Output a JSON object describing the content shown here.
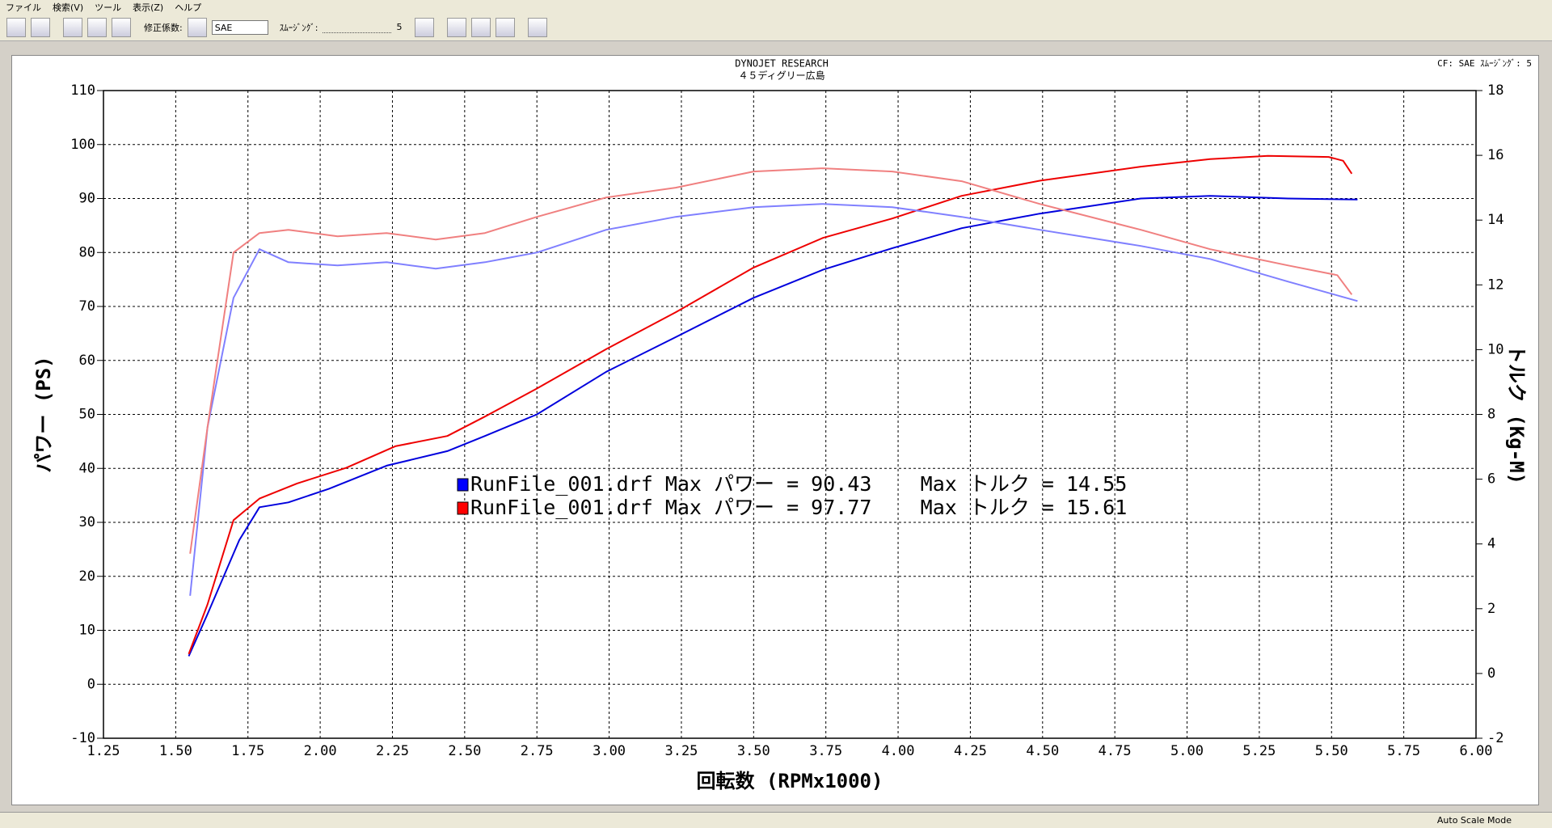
{
  "menu": [
    "ファイル",
    "検索(V)",
    "ツール",
    "表示(Z)",
    "ヘルプ"
  ],
  "toolbar": {
    "correction_label": "修正係数:",
    "correction_value": "SAE",
    "smoothing_label": "ｽﾑｰｼﾞﾝｸﾞ:",
    "smoothing_value": "5"
  },
  "status": "Auto Scale Mode",
  "chart_data": {
    "type": "line",
    "title": "DYNOJET  RESEARCH",
    "subtitle": "４５ディグリー広島",
    "corner_note": "CF: SAE  ｽﾑｰｼﾞﾝｸﾞ: 5",
    "x_label": "回転数 (RPMx1000)",
    "y_label": "パワー (PS)",
    "y2_label": "トルク (Kg-M)",
    "xlim": [
      1.25,
      6.0
    ],
    "xticks": [
      1.25,
      {
        "value": 1.5,
        "label": "1.50"
      },
      1.75,
      {
        "value": 2.0,
        "label": "2.00"
      },
      2.25,
      {
        "value": 2.5,
        "label": "2.50"
      },
      2.75,
      {
        "value": 3.0,
        "label": "3.00"
      },
      3.25,
      {
        "value": 3.5,
        "label": "3.50"
      },
      3.75,
      {
        "value": 4.0,
        "label": "4.00"
      },
      4.25,
      {
        "value": 4.5,
        "label": "4.50"
      },
      4.75,
      {
        "value": 5.0,
        "label": "5.00"
      },
      5.25,
      {
        "value": 5.5,
        "label": "5.50"
      },
      5.75,
      {
        "value": 6.0,
        "label": "6.00"
      }
    ],
    "ylim": [
      -10,
      110
    ],
    "yticks": [
      -10,
      0,
      10,
      20,
      30,
      40,
      50,
      60,
      70,
      80,
      90,
      100,
      110
    ],
    "y2lim": [
      -2,
      18
    ],
    "y2ticks": [
      -2,
      0,
      2,
      4,
      6,
      8,
      10,
      12,
      14,
      16,
      18
    ],
    "grid": true,
    "legend": [
      {
        "text": "RunFile_001.drf Max パワー = 90.43    Max トルク = 14.55",
        "color": "#0000ff"
      },
      {
        "text": "RunFile_001.drf Max パワー = 97.77    Max トルク = 15.61",
        "color": "#ff0000"
      }
    ],
    "series": [
      {
        "color": "#0000dd",
        "axis": "y",
        "x": [
          1.545,
          1.61,
          1.72,
          1.79,
          1.89,
          2.03,
          2.23,
          2.44,
          2.57,
          2.75,
          2.99,
          3.23,
          3.5,
          3.74,
          3.98,
          4.22,
          4.49,
          4.84,
          5.08,
          5.35,
          5.59
        ],
        "values": [
          5.2,
          13,
          26.7,
          32.8,
          33.7,
          36.2,
          40.5,
          43.2,
          46,
          50,
          57.9,
          64.3,
          71.6,
          76.8,
          80.8,
          84.5,
          87.2,
          90,
          90.5,
          90,
          89.8
        ]
      },
      {
        "color": "#ee0000",
        "axis": "y",
        "x": [
          1.545,
          1.61,
          1.7,
          1.79,
          1.92,
          2.09,
          2.26,
          2.44,
          2.57,
          2.75,
          2.99,
          3.23,
          3.5,
          3.74,
          3.98,
          4.22,
          4.49,
          4.84,
          5.08,
          5.28,
          5.49,
          5.54,
          5.57
        ],
        "values": [
          5.6,
          14.8,
          30.4,
          34.4,
          37.2,
          40.1,
          44.1,
          46,
          49.6,
          54.8,
          62.1,
          68.9,
          77.2,
          82.7,
          86.3,
          90.5,
          93.3,
          95.9,
          97.3,
          97.9,
          97.7,
          97,
          94.6
        ]
      },
      {
        "color": "#8080ff",
        "axis": "y2",
        "x": [
          1.55,
          1.61,
          1.7,
          1.79,
          1.89,
          2.06,
          2.23,
          2.4,
          2.57,
          2.75,
          2.99,
          3.23,
          3.5,
          3.74,
          3.98,
          4.22,
          4.49,
          4.84,
          5.08,
          5.35,
          5.59
        ],
        "values": [
          2.4,
          7.6,
          11.6,
          13.1,
          12.7,
          12.6,
          12.7,
          12.5,
          12.7,
          13,
          13.7,
          14.1,
          14.4,
          14.5,
          14.4,
          14.1,
          13.7,
          13.2,
          12.8,
          12.1,
          11.5
        ]
      },
      {
        "color": "#f08080",
        "axis": "y2",
        "x": [
          1.55,
          1.61,
          1.7,
          1.79,
          1.89,
          2.06,
          2.23,
          2.4,
          2.57,
          2.75,
          2.99,
          3.23,
          3.5,
          3.74,
          3.98,
          4.22,
          4.49,
          4.84,
          5.08,
          5.35,
          5.52,
          5.57
        ],
        "values": [
          3.7,
          7.6,
          13,
          13.6,
          13.7,
          13.5,
          13.6,
          13.4,
          13.6,
          14.1,
          14.7,
          15,
          15.5,
          15.6,
          15.5,
          15.2,
          14.5,
          13.7,
          13.1,
          12.6,
          12.3,
          11.7
        ]
      }
    ]
  }
}
